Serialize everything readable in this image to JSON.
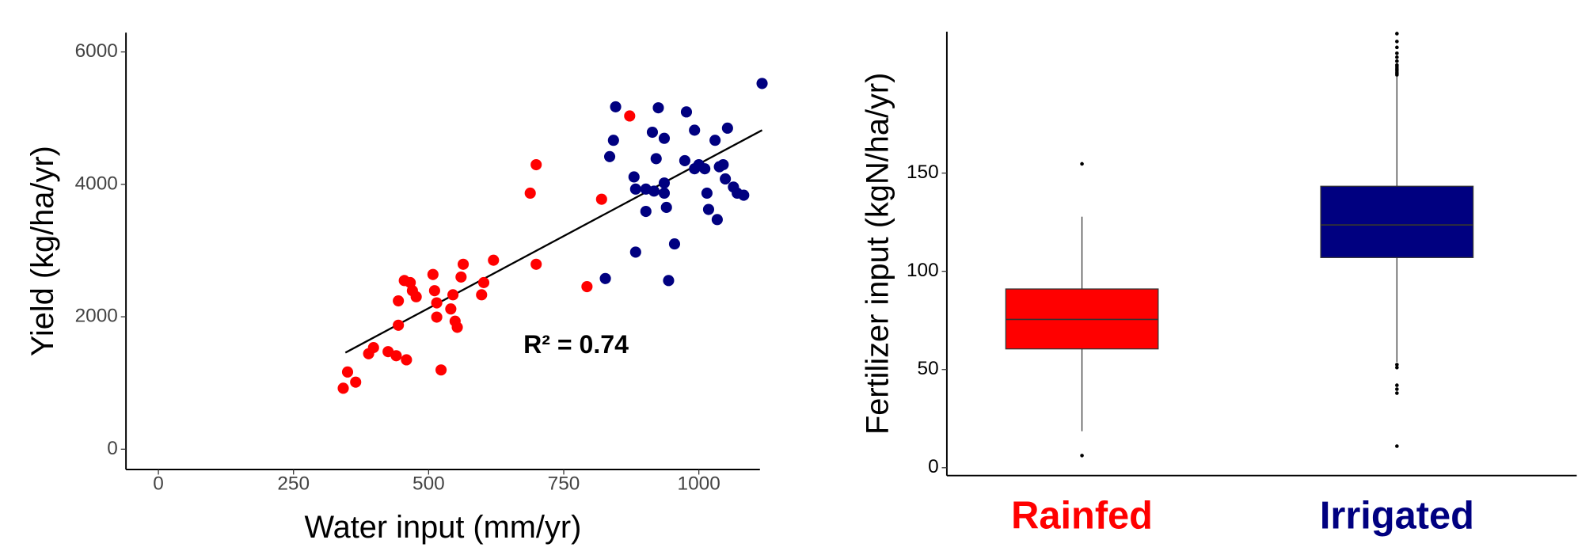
{
  "chart_data": [
    {
      "type": "scatter",
      "x_label": "Water input (mm/yr)",
      "y_label": "Yield (kg/ha/yr)",
      "annotation": "R² = 0.74",
      "xlim": [
        -60,
        1113
      ],
      "ylim": [
        -307,
        6291
      ],
      "xticks": [
        0,
        250,
        500,
        750,
        1000
      ],
      "yticks": [
        0,
        2000,
        4000,
        6000
      ],
      "series": [
        {
          "color": "#ff0000",
          "x": [
            342,
            350,
            365,
            389,
            398,
            425,
            440,
            459,
            444,
            455,
            466,
            470,
            477,
            508,
            511,
            515,
            444,
            523,
            541,
            545,
            549,
            553,
            560,
            564,
            602,
            598,
            620,
            699,
            699,
            688,
            793,
            820,
            872,
            515
          ],
          "values": [
            921,
            1166,
            1013,
            1442,
            1534,
            1473,
            1412,
            1350,
            2240,
            2547,
            2516,
            2394,
            2302,
            2639,
            2394,
            2210,
            1872,
            1197,
            2118,
            2332,
            1933,
            1841,
            2600,
            2793,
            2516,
            2332,
            2854,
            2793,
            4297,
            3867,
            2455,
            3775,
            5033,
            1995
          ]
        },
        {
          "color": "#000080",
          "x": [
            846,
            842,
            835,
            827,
            880,
            883,
            883,
            902,
            902,
            914,
            917,
            921,
            925,
            936,
            936,
            936,
            940,
            944,
            955,
            974,
            977,
            992,
            992,
            1000,
            1011,
            1015,
            1018,
            1030,
            1034,
            1038,
            1045,
            1049,
            1053,
            1064,
            1071,
            1083,
            1117
          ],
          "values": [
            5171,
            4665,
            4419,
            2578,
            4112,
            3928,
            2977,
            3928,
            3591,
            4787,
            3898,
            4388,
            5156,
            4695,
            4020,
            3867,
            3652,
            2547,
            3100,
            4358,
            5094,
            4818,
            4235,
            4297,
            4235,
            3867,
            3621,
            4665,
            3468,
            4266,
            4297,
            4082,
            4849,
            3959,
            3867,
            3836,
            5524
          ]
        }
      ],
      "trendline": {
        "color": "#000000",
        "x": [
          346,
          1117
        ],
        "values": [
          1458,
          4818
        ]
      }
    },
    {
      "type": "box",
      "y_label": "Fertilizer input (kgN/ha/yr)",
      "categories": [
        "Rainfed",
        "Irrigated"
      ],
      "ylim": [
        -4,
        222
      ],
      "yticks": [
        0,
        50,
        100,
        150
      ],
      "series": [
        {
          "color": "#ff0000",
          "min": 18.6,
          "q1": 60.5,
          "median": 75.5,
          "q3": 91,
          "max": 127.8,
          "outliers": [
            154.7,
            6.2
          ]
        },
        {
          "color": "#000080",
          "min": 53.8,
          "q1": 107,
          "median": 123.6,
          "q3": 143.3,
          "max": 199,
          "outliers": [
            221,
            217,
            214,
            211,
            209,
            207,
            205,
            204,
            203,
            202,
            201,
            200,
            52.5,
            51,
            42,
            40,
            38,
            11
          ]
        }
      ]
    }
  ]
}
